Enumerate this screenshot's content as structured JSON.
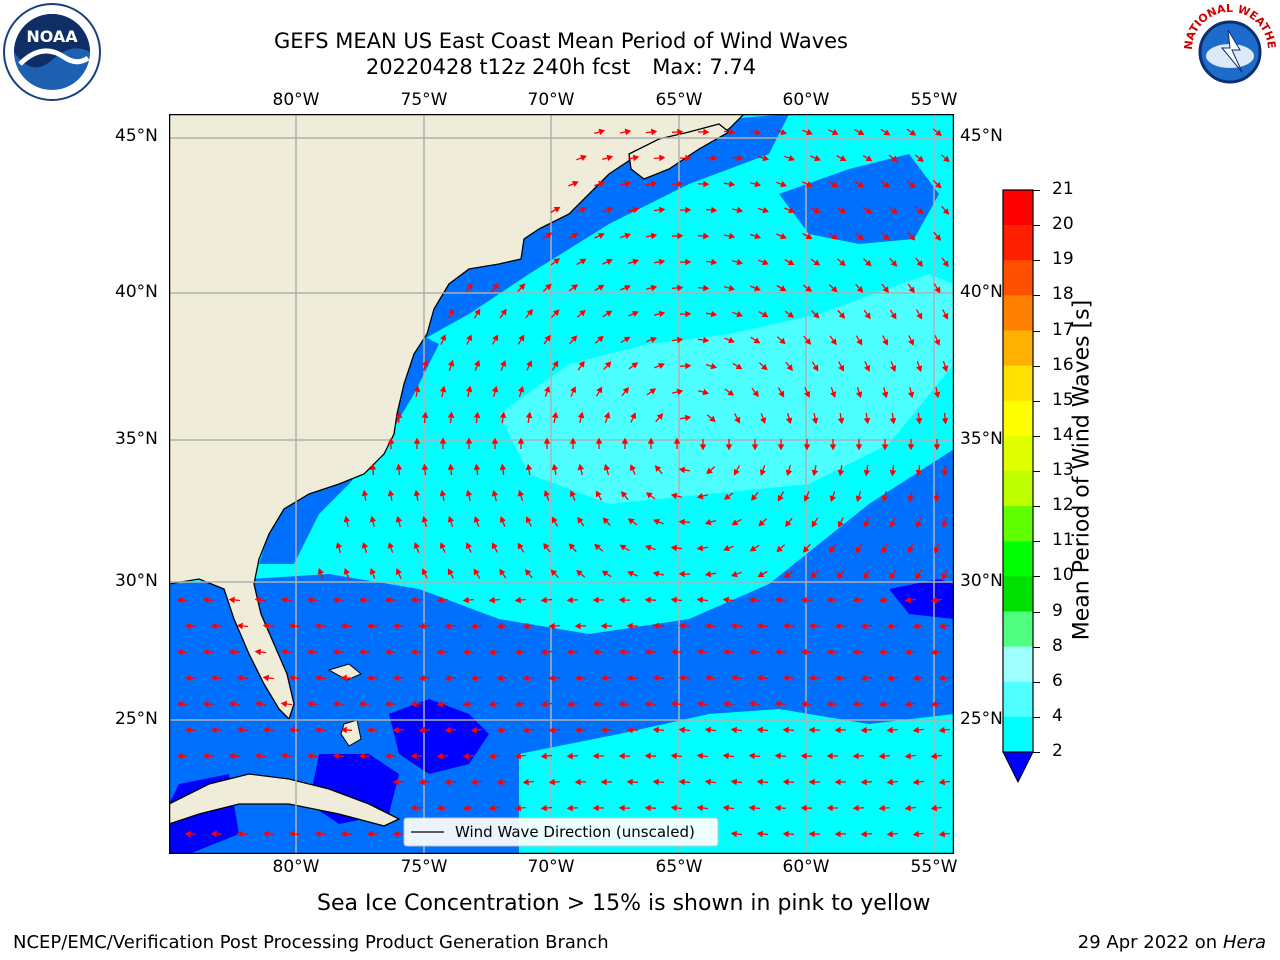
{
  "title": {
    "line1": "GEFS MEAN US East Coast Mean Period of Wind Waves",
    "line2": "20220428 t12z 240h fcst",
    "max_label": "Max: 7.74"
  },
  "map": {
    "lon_labels": [
      "80°W",
      "75°W",
      "70°W",
      "65°W",
      "60°W",
      "55°W"
    ],
    "lat_labels": [
      "45°N",
      "40°N",
      "35°N",
      "30°N",
      "25°N"
    ],
    "legend_text": "Wind Wave Direction (unscaled)",
    "arrow_color": "#ff0000",
    "land_color": "#efedd9",
    "ocean_colors": {
      "2_4": "#0070ff",
      "4_6": "#00ffff",
      "6_8": "#4dffff",
      "lt2": "#0000ff"
    }
  },
  "colorbar": {
    "label": "Mean Period of Wind Waves [s]",
    "ticks": [
      "21",
      "20",
      "19",
      "18",
      "17",
      "16",
      "15",
      "14",
      "13",
      "12",
      "11",
      "10",
      "9",
      "8",
      "6",
      "4",
      "2"
    ],
    "colors": [
      "#ff0000",
      "#ff2000",
      "#ff5000",
      "#ff8000",
      "#ffb000",
      "#ffe000",
      "#ffff00",
      "#e0ff00",
      "#c0ff00",
      "#60ff00",
      "#00ff00",
      "#00e000",
      "#50ff80",
      "#a0ffff",
      "#50ffff",
      "#00ffff",
      "#0070ff"
    ],
    "under_color": "#0000ff"
  },
  "caption": "Sea Ice Concentration > 15% is shown in pink to yellow",
  "footer": {
    "left": "NCEP/EMC/Verification Post Processing Product Generation Branch",
    "right_date": "29 Apr 2022 on ",
    "right_host": "Hera"
  },
  "logos": {
    "noaa_text": "NOAA",
    "nws_text": "NATIONAL WEATHER SERVICE"
  }
}
